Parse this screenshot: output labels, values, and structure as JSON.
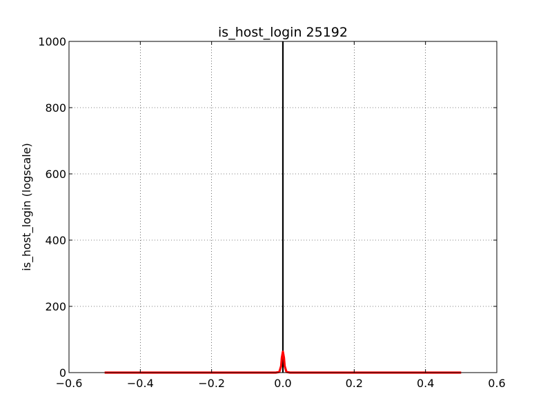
{
  "chart_data": {
    "type": "line",
    "title": "is_host_login 25192",
    "xlabel": "",
    "ylabel": "is_host_login (logscale)",
    "xlim": [
      -0.6,
      0.6
    ],
    "ylim": [
      0,
      1000
    ],
    "x_ticks": [
      -0.6,
      -0.4,
      -0.2,
      0.0,
      0.2,
      0.4,
      0.6
    ],
    "x_tick_labels": [
      "−0.6",
      "−0.4",
      "−0.2",
      "0.0",
      "0.2",
      "0.4",
      "0.6"
    ],
    "y_ticks": [
      0,
      200,
      400,
      600,
      800,
      1000
    ],
    "y_tick_labels": [
      "0",
      "200",
      "400",
      "600",
      "800",
      "1000"
    ],
    "grid": true,
    "grid_style": "dotted",
    "series": [
      {
        "kind": "histogram-bar",
        "color": "#000000",
        "x": [
          0.0
        ],
        "values": [
          1000
        ]
      },
      {
        "kind": "density-curve",
        "color": "#ff0000",
        "x": [
          -0.5,
          -0.02,
          -0.01,
          -0.005,
          -0.003,
          0.0,
          0.003,
          0.005,
          0.01,
          0.02,
          0.5
        ],
        "values": [
          0,
          0,
          2,
          20,
          45,
          63,
          45,
          20,
          2,
          0,
          0
        ]
      }
    ]
  }
}
